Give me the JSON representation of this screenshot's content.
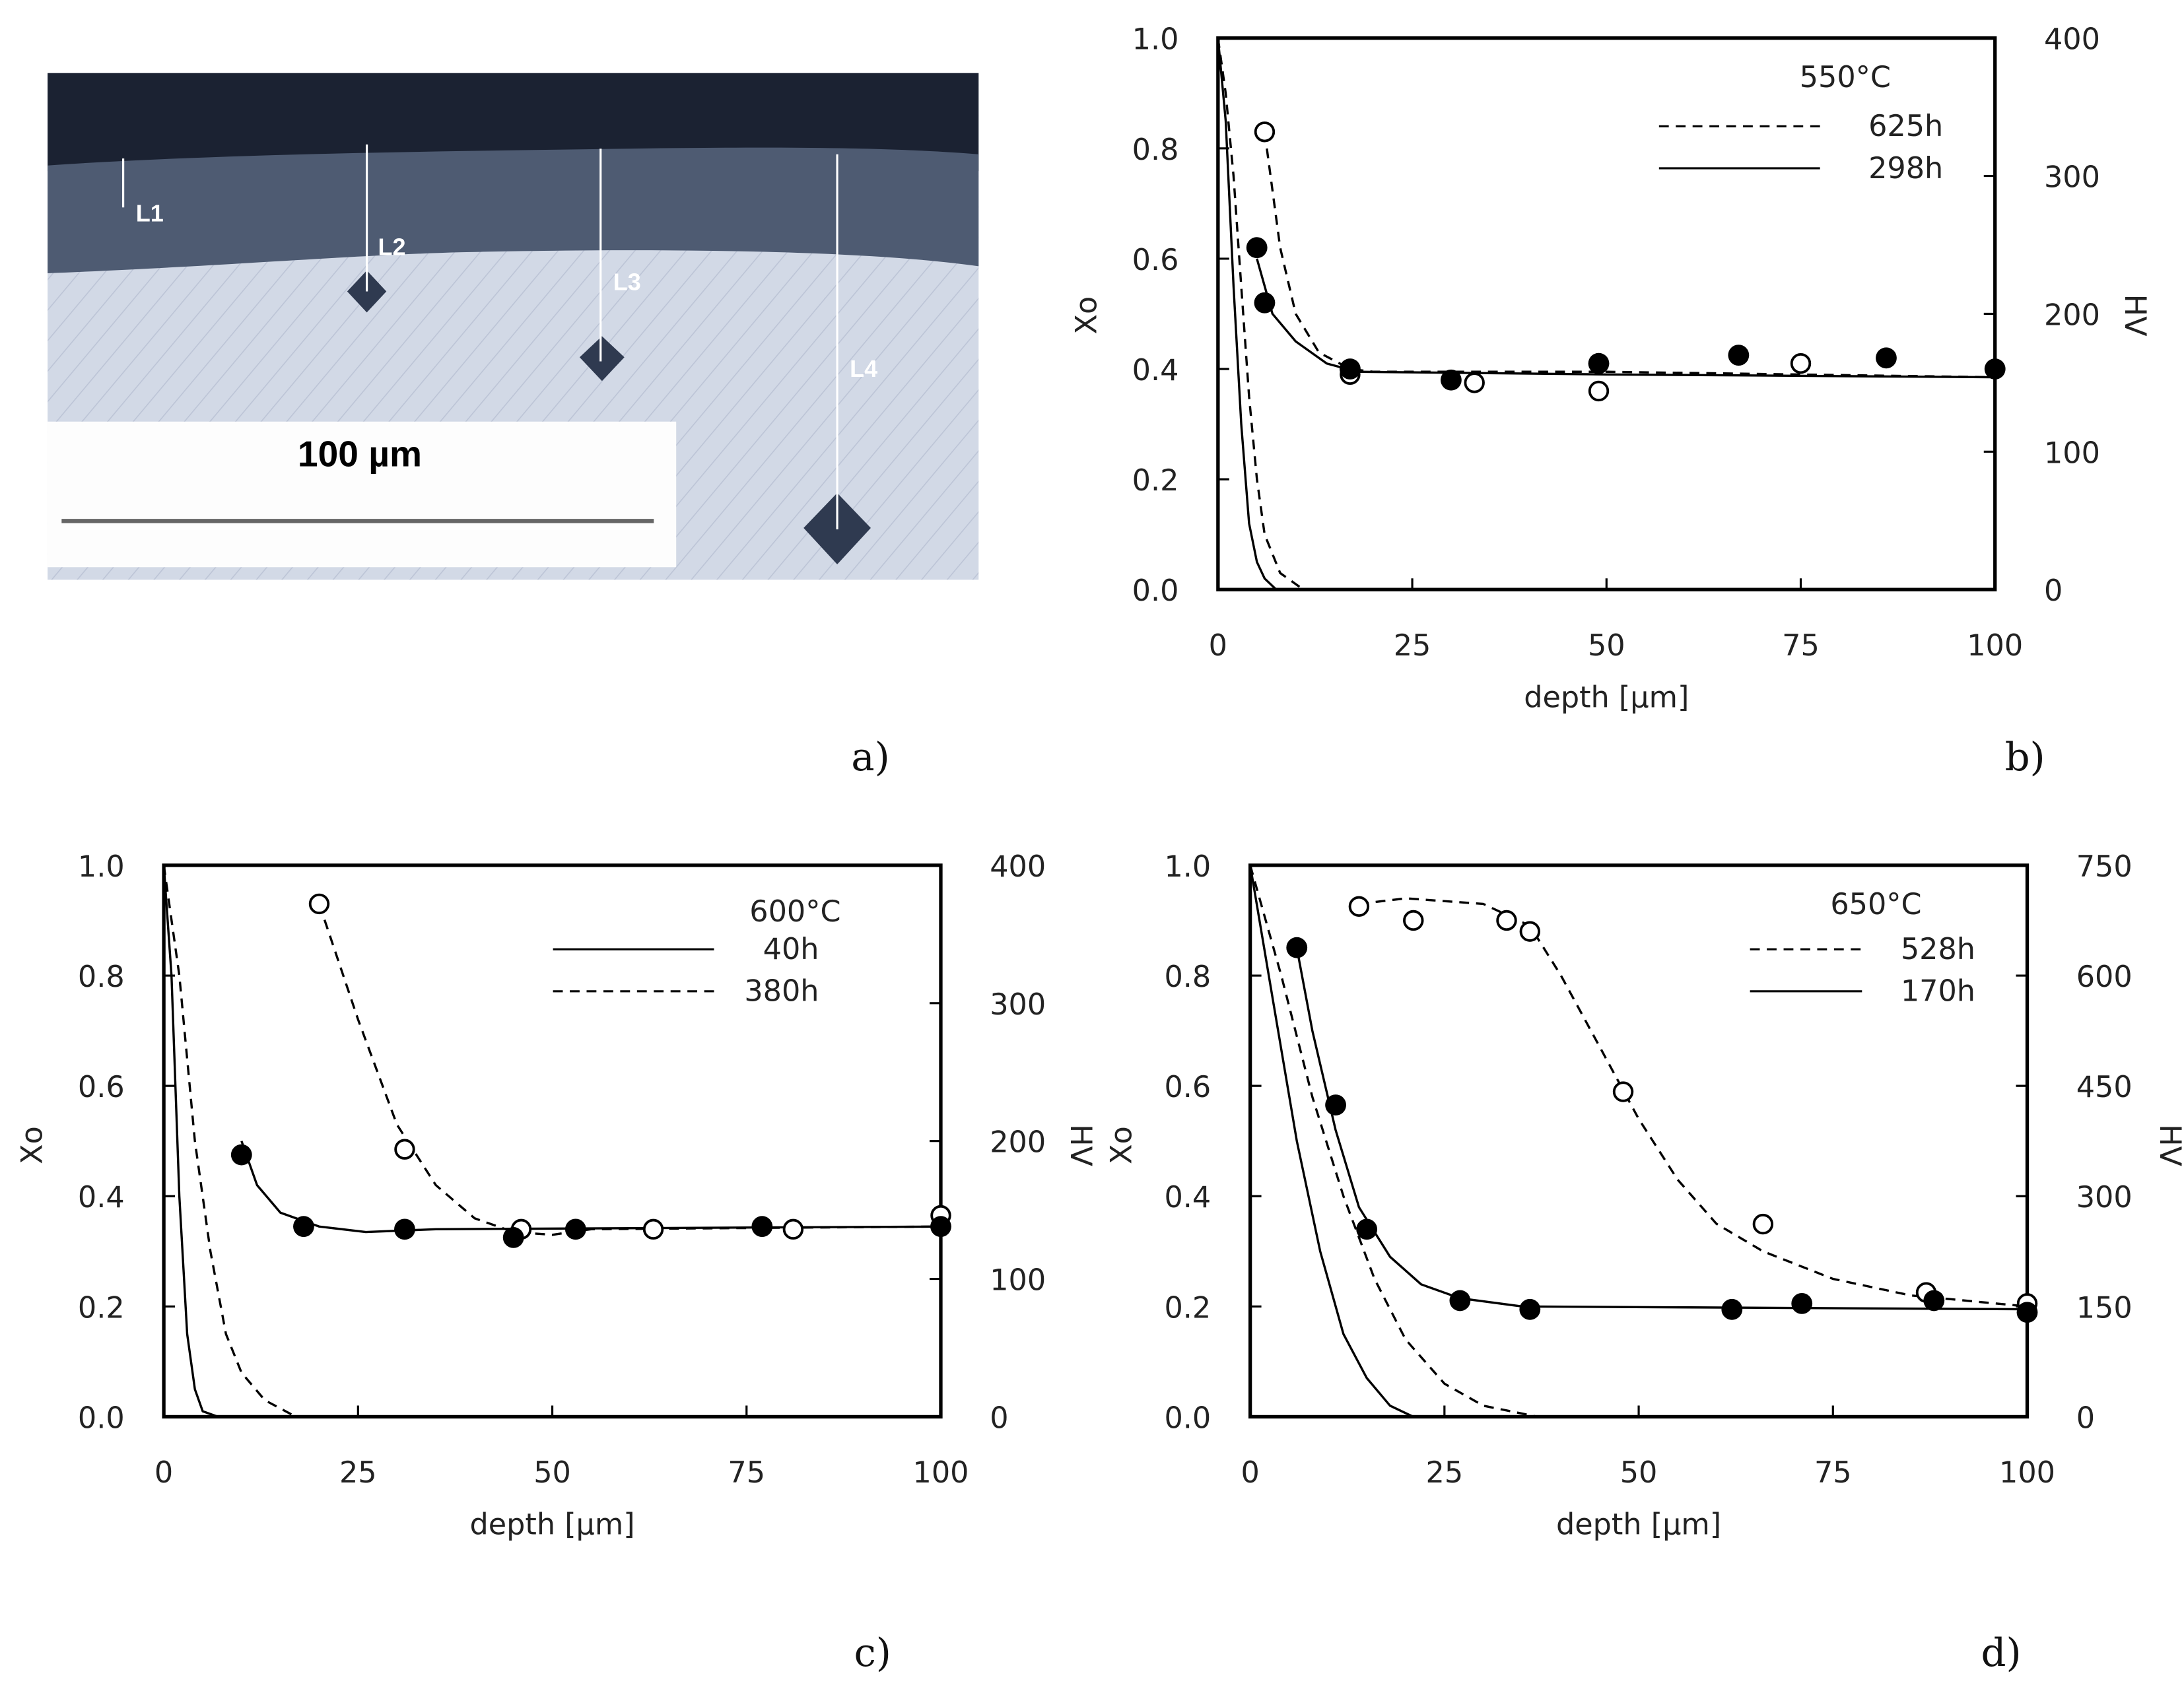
{
  "photo": {
    "markers": [
      "L1",
      "L2",
      "L3",
      "L4"
    ],
    "scale_bar": "100 µm",
    "label": "a)"
  },
  "chart_data": [
    {
      "type": "scatter",
      "panel_label": "b)",
      "title": "550°C",
      "xlabel": "depth [µm]",
      "ylabel": "Xo",
      "y2label": "HV",
      "xlim": [
        0,
        100
      ],
      "ylim": [
        0,
        1
      ],
      "y2lim": [
        0,
        400
      ],
      "xticks": [
        "0",
        "25",
        "50",
        "75",
        "100"
      ],
      "yticks": [
        "0.0",
        "0.2",
        "0.4",
        "0.6",
        "0.8",
        "1.0"
      ],
      "y2ticks": [
        "0",
        "100",
        "200",
        "300",
        "400"
      ],
      "legend": [
        {
          "label": "625h",
          "style": "dashed"
        },
        {
          "label": "298h",
          "style": "solid"
        }
      ],
      "legend_order": "dashed-first",
      "points": {
        "filled_HV": [
          [
            5,
            248
          ],
          [
            6,
            208
          ],
          [
            17,
            160
          ],
          [
            30,
            152
          ],
          [
            49,
            164
          ],
          [
            67,
            170
          ],
          [
            86,
            168
          ],
          [
            100,
            160
          ]
        ],
        "open_HV": [
          [
            6,
            332
          ],
          [
            17,
            156
          ],
          [
            33,
            150
          ],
          [
            49,
            144
          ],
          [
            75,
            164
          ]
        ]
      },
      "curves": [
        {
          "series": "298h",
          "style": "solid",
          "axis": "Xo",
          "xy": [
            [
              0,
              1
            ],
            [
              1,
              0.85
            ],
            [
              2,
              0.55
            ],
            [
              3,
              0.3
            ],
            [
              4,
              0.12
            ],
            [
              5,
              0.05
            ],
            [
              6,
              0.02
            ],
            [
              7.5,
              0
            ]
          ]
        },
        {
          "series": "625h",
          "style": "dashed",
          "axis": "Xo",
          "xy": [
            [
              0,
              1
            ],
            [
              1,
              0.9
            ],
            [
              2,
              0.75
            ],
            [
              3,
              0.55
            ],
            [
              4,
              0.35
            ],
            [
              5,
              0.2
            ],
            [
              6,
              0.1
            ],
            [
              8,
              0.03
            ],
            [
              11,
              0
            ]
          ]
        },
        {
          "series": "298h",
          "style": "solid",
          "axis": "HV",
          "xy": [
            [
              5,
              0.6
            ],
            [
              7,
              0.5
            ],
            [
              10,
              0.45
            ],
            [
              14,
              0.41
            ],
            [
              18,
              0.395
            ],
            [
              50,
              0.39
            ],
            [
              100,
              0.385
            ]
          ]
        },
        {
          "series": "625h",
          "style": "dashed",
          "axis": "HV",
          "xy": [
            [
              6,
              0.83
            ],
            [
              8,
              0.62
            ],
            [
              10,
              0.5
            ],
            [
              13,
              0.43
            ],
            [
              17,
              0.4
            ],
            [
              20,
              0.395
            ],
            [
              50,
              0.395
            ],
            [
              100,
              0.385
            ]
          ]
        }
      ]
    },
    {
      "type": "scatter",
      "panel_label": "c)",
      "title": "600°C",
      "xlabel": "depth [µm]",
      "ylabel": "Xo",
      "y2label": "HV",
      "xlim": [
        0,
        100
      ],
      "ylim": [
        0,
        1
      ],
      "y2lim": [
        0,
        400
      ],
      "xticks": [
        "0",
        "25",
        "50",
        "75",
        "100"
      ],
      "yticks": [
        "0.0",
        "0.2",
        "0.4",
        "0.6",
        "0.8",
        "1.0"
      ],
      "y2ticks": [
        "0",
        "100",
        "200",
        "300",
        "400"
      ],
      "legend": [
        {
          "label": "40h",
          "style": "solid"
        },
        {
          "label": "380h",
          "style": "dashed"
        }
      ],
      "points": {
        "filled_HV": [
          [
            10,
            190
          ],
          [
            18,
            138
          ],
          [
            31,
            136
          ],
          [
            45,
            130
          ],
          [
            53,
            136
          ],
          [
            77,
            138
          ],
          [
            100,
            138
          ]
        ],
        "open_HV": [
          [
            20,
            372
          ],
          [
            31,
            194
          ],
          [
            46,
            136
          ],
          [
            63,
            136
          ],
          [
            81,
            136
          ],
          [
            100,
            146
          ]
        ]
      },
      "curves": [
        {
          "series": "40h",
          "style": "solid",
          "axis": "Xo",
          "xy": [
            [
              0,
              1
            ],
            [
              1,
              0.8
            ],
            [
              2,
              0.4
            ],
            [
              3,
              0.15
            ],
            [
              4,
              0.05
            ],
            [
              5,
              0.01
            ],
            [
              7,
              0
            ]
          ]
        },
        {
          "series": "380h",
          "style": "dashed",
          "axis": "Xo",
          "xy": [
            [
              0,
              1
            ],
            [
              2,
              0.8
            ],
            [
              4,
              0.5
            ],
            [
              6,
              0.3
            ],
            [
              8,
              0.15
            ],
            [
              10,
              0.08
            ],
            [
              13,
              0.03
            ],
            [
              17,
              0
            ]
          ]
        },
        {
          "series": "40h",
          "style": "solid",
          "axis": "HV",
          "xy": [
            [
              10,
              0.5
            ],
            [
              12,
              0.42
            ],
            [
              15,
              0.37
            ],
            [
              20,
              0.345
            ],
            [
              26,
              0.335
            ],
            [
              35,
              0.34
            ],
            [
              100,
              0.345
            ]
          ]
        },
        {
          "series": "380h",
          "style": "dashed",
          "axis": "HV",
          "xy": [
            [
              20,
              0.93
            ],
            [
              25,
              0.72
            ],
            [
              30,
              0.53
            ],
            [
              35,
              0.42
            ],
            [
              40,
              0.36
            ],
            [
              45,
              0.335
            ],
            [
              50,
              0.33
            ],
            [
              55,
              0.34
            ],
            [
              100,
              0.345
            ]
          ]
        }
      ]
    },
    {
      "type": "scatter",
      "panel_label": "d)",
      "title": "650°C",
      "xlabel": "depth [µm]",
      "ylabel": "Xo",
      "y2label": "HV",
      "xlim": [
        0,
        100
      ],
      "ylim": [
        0,
        1
      ],
      "y2lim": [
        0,
        750
      ],
      "xticks": [
        "0",
        "25",
        "50",
        "75",
        "100"
      ],
      "yticks": [
        "0.0",
        "0.2",
        "0.4",
        "0.6",
        "0.8",
        "1.0"
      ],
      "y2ticks": [
        "0",
        "150",
        "300",
        "450",
        "600",
        "750"
      ],
      "legend": [
        {
          "label": "528h",
          "style": "dashed"
        },
        {
          "label": "170h",
          "style": "solid"
        }
      ],
      "points": {
        "filled_HV": [
          [
            6,
            638
          ],
          [
            11,
            424
          ],
          [
            15,
            255
          ],
          [
            27,
            158
          ],
          [
            36,
            146
          ],
          [
            62,
            146
          ],
          [
            71,
            154
          ],
          [
            88,
            158
          ],
          [
            100,
            142
          ]
        ],
        "open_HV": [
          [
            14,
            694
          ],
          [
            21,
            675
          ],
          [
            33,
            675
          ],
          [
            36,
            660
          ],
          [
            48,
            442
          ],
          [
            66,
            262
          ],
          [
            87,
            169
          ],
          [
            100,
            154
          ]
        ]
      },
      "curves": [
        {
          "series": "170h",
          "style": "solid",
          "axis": "Xo",
          "xy": [
            [
              0,
              1
            ],
            [
              3,
              0.75
            ],
            [
              6,
              0.5
            ],
            [
              9,
              0.3
            ],
            [
              12,
              0.15
            ],
            [
              15,
              0.07
            ],
            [
              18,
              0.02
            ],
            [
              21,
              0
            ]
          ]
        },
        {
          "series": "528h",
          "style": "dashed",
          "axis": "Xo",
          "xy": [
            [
              0,
              1
            ],
            [
              4,
              0.8
            ],
            [
              8,
              0.58
            ],
            [
              12,
              0.4
            ],
            [
              16,
              0.25
            ],
            [
              20,
              0.14
            ],
            [
              25,
              0.06
            ],
            [
              30,
              0.02
            ],
            [
              37,
              0
            ]
          ]
        },
        {
          "series": "170h",
          "style": "solid",
          "axis": "HV",
          "xy": [
            [
              6,
              0.85
            ],
            [
              8,
              0.7
            ],
            [
              11,
              0.52
            ],
            [
              14,
              0.38
            ],
            [
              18,
              0.29
            ],
            [
              22,
              0.24
            ],
            [
              27,
              0.215
            ],
            [
              35,
              0.2
            ],
            [
              100,
              0.195
            ]
          ]
        },
        {
          "series": "528h",
          "style": "dashed",
          "axis": "HV",
          "xy": [
            [
              14,
              0.93
            ],
            [
              20,
              0.94
            ],
            [
              30,
              0.93
            ],
            [
              36,
              0.89
            ],
            [
              40,
              0.8
            ],
            [
              45,
              0.67
            ],
            [
              50,
              0.54
            ],
            [
              55,
              0.43
            ],
            [
              60,
              0.35
            ],
            [
              66,
              0.3
            ],
            [
              75,
              0.25
            ],
            [
              85,
              0.22
            ],
            [
              100,
              0.2
            ]
          ]
        }
      ]
    }
  ]
}
